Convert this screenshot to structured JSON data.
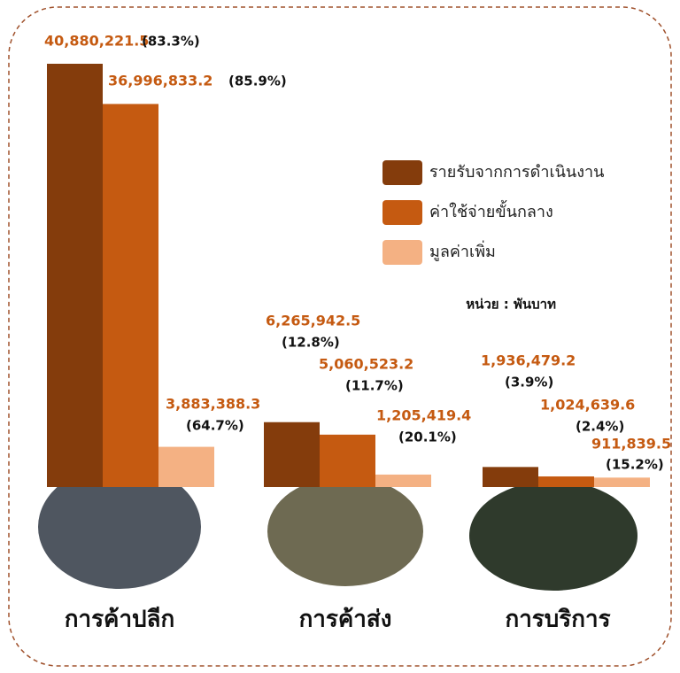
{
  "chart_data": {
    "type": "bar",
    "categories": [
      "การค้าปลีก",
      "การค้าส่ง",
      "การบริการ"
    ],
    "unit": "หน่วย : พันบาท",
    "series": [
      {
        "name": "รายรับจากการดำเนินงาน",
        "color": "#843c0c",
        "values": [
          40880221.5,
          6265942.5,
          1936479.2
        ],
        "value_labels": [
          "40,880,221.5",
          "6,265,942.5",
          "1,936,479.2"
        ],
        "share_labels": [
          "(83.3%)",
          "(12.8%)",
          "(3.9%)"
        ]
      },
      {
        "name": "ค่าใช้จ่ายขั้นกลาง",
        "color": "#c55a11",
        "values": [
          36996833.2,
          5060523.2,
          1024639.6
        ],
        "value_labels": [
          "36,996,833.2",
          "5,060,523.2",
          "1,024,639.6"
        ],
        "share_labels": [
          "(85.9%)",
          "(11.7%)",
          "(2.4%)"
        ]
      },
      {
        "name": "มูลค่าเพิ่ม",
        "color": "#f4b183",
        "values": [
          3883388.3,
          1205419.4,
          911839.5
        ],
        "value_labels": [
          "3,883,388.3",
          "1,205,419.4",
          "911,839.5"
        ],
        "share_labels": [
          "(64.7%)",
          "(20.1%)",
          "(15.2%)"
        ]
      }
    ]
  }
}
